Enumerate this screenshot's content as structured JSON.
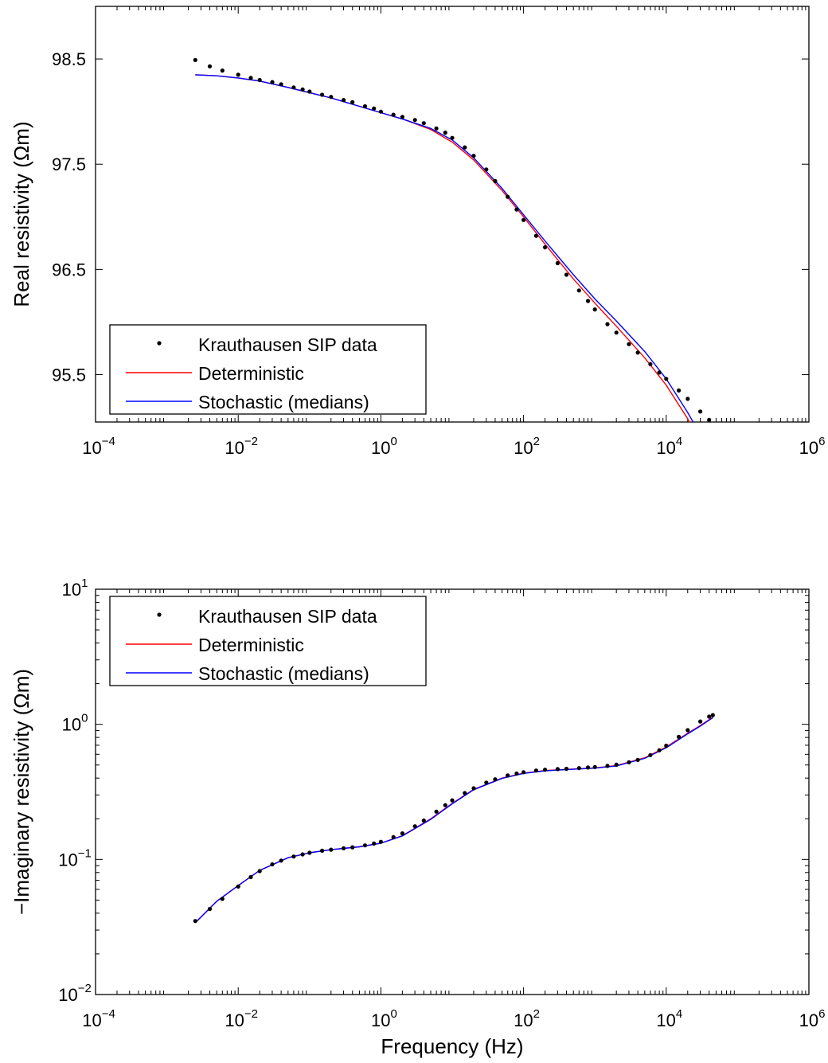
{
  "chart_data": [
    {
      "type": "scatter",
      "xscale": "log",
      "yscale": "linear",
      "xlim": [
        0.0001,
        1000000
      ],
      "ylim": [
        95.05,
        99.0
      ],
      "xlabel": "",
      "ylabel": "Real resistivity (Ωm)",
      "x_ticks": [
        {
          "value": 0.0001,
          "base": "10",
          "exp": "−4"
        },
        {
          "value": 0.01,
          "base": "10",
          "exp": "−2"
        },
        {
          "value": 1,
          "base": "10",
          "exp": "0"
        },
        {
          "value": 100,
          "base": "10",
          "exp": "2"
        },
        {
          "value": 10000,
          "base": "10",
          "exp": "4"
        },
        {
          "value": 1000000,
          "base": "10",
          "exp": "6"
        }
      ],
      "y_ticks": [
        {
          "value": 95.5,
          "label": "95.5"
        },
        {
          "value": 96.5,
          "label": "96.5"
        },
        {
          "value": 97.5,
          "label": "97.5"
        },
        {
          "value": 98.5,
          "label": "98.5"
        }
      ],
      "legend": {
        "position": "bottom-left",
        "entries": [
          "Krauthausen SIP data",
          "Deterministic",
          "Stochastic (medians)"
        ]
      },
      "series": [
        {
          "name": "Krauthausen SIP data",
          "kind": "points",
          "color": "#000000",
          "x": [
            0.0025,
            0.004,
            0.006,
            0.01,
            0.015,
            0.02,
            0.03,
            0.04,
            0.06,
            0.08,
            0.1,
            0.15,
            0.2,
            0.3,
            0.4,
            0.6,
            0.8,
            1,
            1.5,
            2,
            3,
            4,
            6,
            8,
            10,
            15,
            20,
            30,
            40,
            60,
            80,
            100,
            150,
            200,
            300,
            400,
            600,
            800,
            1000,
            1500,
            2000,
            3000,
            4000,
            6000,
            8000,
            10000,
            15000,
            20000,
            30000,
            40000,
            45000
          ],
          "y": [
            98.49,
            98.43,
            98.39,
            98.35,
            98.32,
            98.3,
            98.28,
            98.26,
            98.23,
            98.21,
            98.19,
            98.16,
            98.14,
            98.11,
            98.09,
            98.05,
            98.03,
            98.0,
            97.97,
            97.95,
            97.92,
            97.89,
            97.84,
            97.8,
            97.75,
            97.66,
            97.58,
            97.45,
            97.34,
            97.19,
            97.07,
            96.97,
            96.82,
            96.71,
            96.56,
            96.45,
            96.3,
            96.2,
            96.12,
            95.98,
            95.9,
            95.79,
            95.71,
            95.6,
            95.52,
            95.46,
            95.35,
            95.27,
            95.15,
            95.07,
            95.03
          ]
        },
        {
          "name": "Deterministic",
          "kind": "line",
          "color": "#ff0000",
          "x": [
            0.0025,
            0.005,
            0.01,
            0.02,
            0.05,
            0.1,
            0.2,
            0.5,
            1,
            2,
            5,
            10,
            20,
            50,
            100,
            200,
            500,
            1000,
            2000,
            5000,
            10000,
            20000,
            30000,
            45000
          ],
          "y": [
            98.35,
            98.34,
            98.32,
            98.29,
            98.23,
            98.18,
            98.13,
            98.05,
            97.99,
            97.93,
            97.83,
            97.71,
            97.54,
            97.25,
            97.0,
            96.74,
            96.41,
            96.18,
            95.96,
            95.66,
            95.4,
            95.08,
            94.87,
            94.57
          ]
        },
        {
          "name": "Stochastic (medians)",
          "kind": "line",
          "color": "#0000ff",
          "x": [
            0.0025,
            0.005,
            0.01,
            0.02,
            0.05,
            0.1,
            0.2,
            0.5,
            1,
            2,
            5,
            10,
            20,
            50,
            100,
            200,
            500,
            1000,
            2000,
            5000,
            10000,
            20000,
            30000,
            45000
          ],
          "y": [
            98.35,
            98.34,
            98.32,
            98.29,
            98.23,
            98.18,
            98.13,
            98.05,
            97.99,
            97.93,
            97.84,
            97.73,
            97.56,
            97.27,
            97.02,
            96.77,
            96.45,
            96.22,
            96.01,
            95.72,
            95.46,
            95.14,
            94.93,
            94.63
          ]
        }
      ]
    },
    {
      "type": "scatter",
      "xscale": "log",
      "yscale": "log",
      "xlim": [
        0.0001,
        1000000
      ],
      "ylim": [
        0.01,
        10
      ],
      "xlabel": "Frequency (Hz)",
      "ylabel": "−Imaginary resistivity (Ωm)",
      "x_ticks": [
        {
          "value": 0.0001,
          "base": "10",
          "exp": "−4"
        },
        {
          "value": 0.01,
          "base": "10",
          "exp": "−2"
        },
        {
          "value": 1,
          "base": "10",
          "exp": "0"
        },
        {
          "value": 100,
          "base": "10",
          "exp": "2"
        },
        {
          "value": 10000,
          "base": "10",
          "exp": "4"
        },
        {
          "value": 1000000,
          "base": "10",
          "exp": "6"
        }
      ],
      "y_ticks": [
        {
          "value": 0.01,
          "base": "10",
          "exp": "−2"
        },
        {
          "value": 0.1,
          "base": "10",
          "exp": "−1"
        },
        {
          "value": 1,
          "base": "10",
          "exp": "0"
        },
        {
          "value": 10,
          "base": "10",
          "exp": "1"
        }
      ],
      "legend": {
        "position": "top-left",
        "entries": [
          "Krauthausen SIP data",
          "Deterministic",
          "Stochastic (medians)"
        ]
      },
      "series": [
        {
          "name": "Krauthausen SIP data",
          "kind": "points",
          "color": "#000000",
          "x": [
            0.0025,
            0.004,
            0.006,
            0.01,
            0.015,
            0.02,
            0.03,
            0.04,
            0.06,
            0.08,
            0.1,
            0.15,
            0.2,
            0.3,
            0.4,
            0.6,
            0.8,
            1,
            1.5,
            2,
            3,
            4,
            6,
            8,
            10,
            15,
            20,
            30,
            40,
            60,
            80,
            100,
            150,
            200,
            300,
            400,
            600,
            800,
            1000,
            1500,
            2000,
            3000,
            4000,
            6000,
            8000,
            10000,
            15000,
            20000,
            30000,
            40000,
            45000
          ],
          "y": [
            0.035,
            0.043,
            0.051,
            0.063,
            0.074,
            0.082,
            0.092,
            0.098,
            0.105,
            0.109,
            0.112,
            0.116,
            0.118,
            0.121,
            0.123,
            0.127,
            0.131,
            0.135,
            0.146,
            0.156,
            0.176,
            0.194,
            0.226,
            0.252,
            0.274,
            0.31,
            0.336,
            0.37,
            0.392,
            0.418,
            0.432,
            0.442,
            0.455,
            0.461,
            0.466,
            0.469,
            0.474,
            0.479,
            0.483,
            0.492,
            0.502,
            0.523,
            0.545,
            0.592,
            0.642,
            0.695,
            0.808,
            0.905,
            1.05,
            1.14,
            1.17
          ]
        },
        {
          "name": "Deterministic",
          "kind": "line",
          "color": "#ff0000",
          "x": [
            0.0025,
            0.005,
            0.01,
            0.02,
            0.05,
            0.1,
            0.2,
            0.5,
            1,
            2,
            5,
            10,
            20,
            50,
            100,
            200,
            500,
            1000,
            2000,
            5000,
            10000,
            20000,
            30000,
            45000
          ],
          "y": [
            0.034,
            0.049,
            0.064,
            0.083,
            0.103,
            0.112,
            0.118,
            0.124,
            0.132,
            0.15,
            0.2,
            0.26,
            0.33,
            0.4,
            0.435,
            0.455,
            0.467,
            0.476,
            0.495,
            0.565,
            0.68,
            0.86,
            0.98,
            1.13
          ]
        },
        {
          "name": "Stochastic (medians)",
          "kind": "line",
          "color": "#0000ff",
          "x": [
            0.0025,
            0.005,
            0.01,
            0.02,
            0.05,
            0.1,
            0.2,
            0.5,
            1,
            2,
            5,
            10,
            20,
            50,
            100,
            200,
            500,
            1000,
            2000,
            5000,
            10000,
            20000,
            30000,
            45000
          ],
          "y": [
            0.034,
            0.049,
            0.064,
            0.083,
            0.103,
            0.112,
            0.118,
            0.124,
            0.132,
            0.149,
            0.198,
            0.258,
            0.328,
            0.398,
            0.433,
            0.453,
            0.465,
            0.474,
            0.492,
            0.56,
            0.67,
            0.85,
            0.97,
            1.12
          ]
        }
      ]
    }
  ]
}
